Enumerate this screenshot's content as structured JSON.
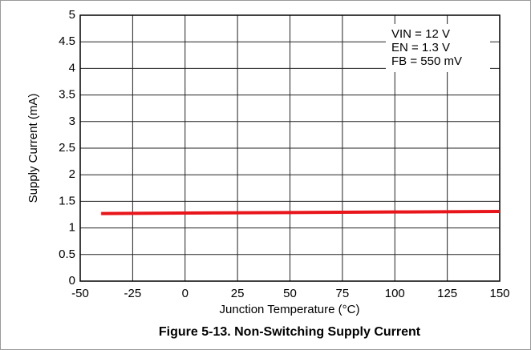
{
  "chart_data": {
    "type": "line",
    "title": "Figure 5-13. Non-Switching Supply Current",
    "x_label": "Junction Temperature (°C)",
    "y_label": "Supply Current (mA)",
    "annotations": [
      "VIN = 12 V",
      "EN = 1.3 V",
      "FB = 550 mV"
    ],
    "x": [
      -40,
      0,
      50,
      100,
      150
    ],
    "series": [
      {
        "name": "Supply Current",
        "color": "#e8151b",
        "values": [
          1.27,
          1.28,
          1.29,
          1.3,
          1.31
        ]
      }
    ],
    "xlim": [
      -50,
      150
    ],
    "xticks": [
      -50,
      -25,
      0,
      25,
      50,
      75,
      100,
      125,
      150
    ],
    "ylim": [
      0,
      5
    ],
    "yticks": [
      0,
      0.5,
      1,
      1.5,
      2,
      2.5,
      3,
      3.5,
      4,
      4.5,
      5
    ],
    "grid": true
  }
}
